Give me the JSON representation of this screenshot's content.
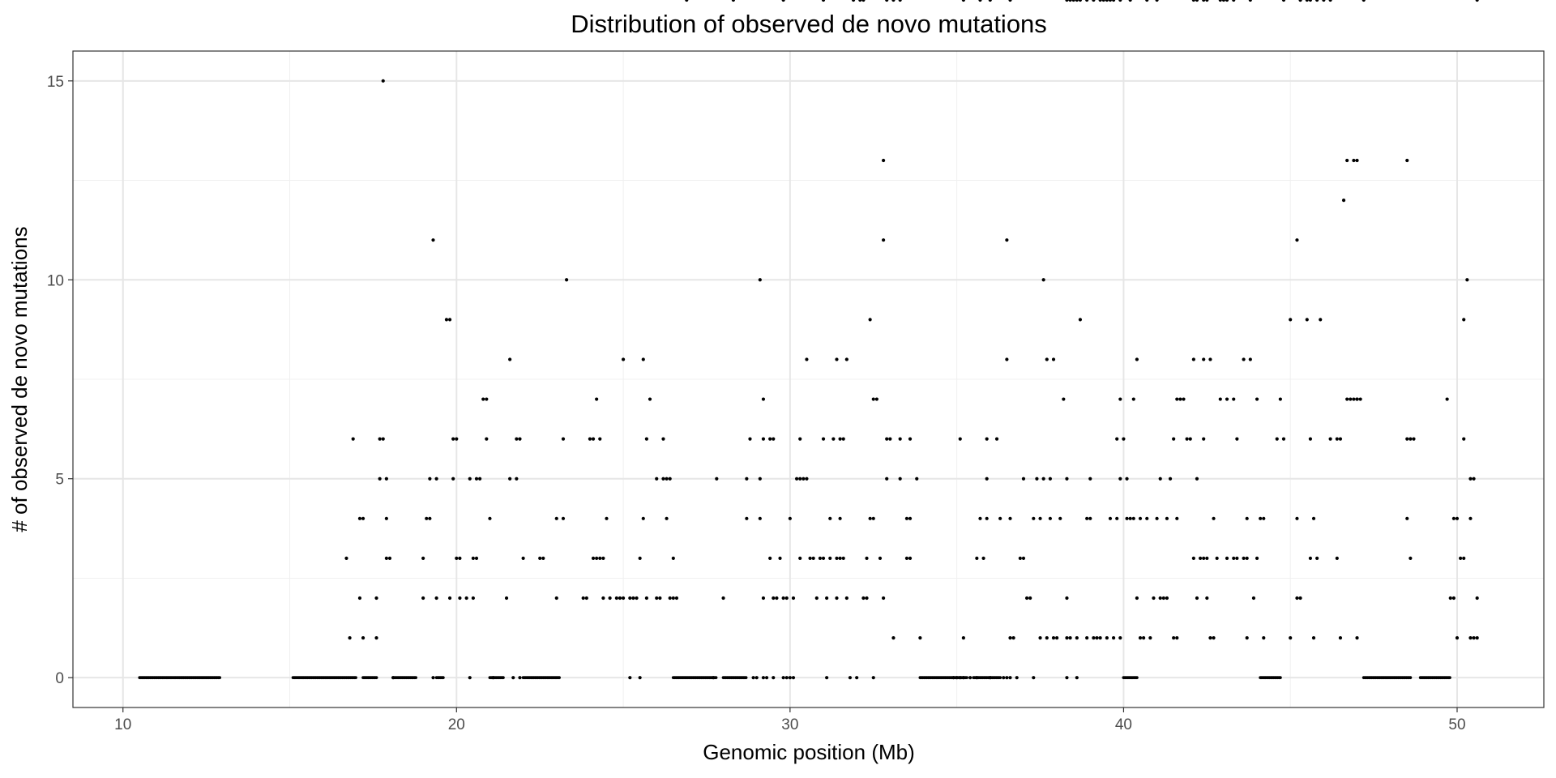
{
  "chart_data": {
    "type": "scatter",
    "title": "Distribution of observed de novo mutations",
    "xlabel": "Genomic position (Mb)",
    "ylabel": "# of observed de novo mutations",
    "xlim": [
      8.5,
      52.6
    ],
    "ylim": [
      -0.75,
      15.75
    ],
    "xticks": [
      10,
      20,
      30,
      40,
      50
    ],
    "yticks": [
      0,
      5,
      10,
      15
    ],
    "x_tick_labels": [
      "10",
      "20",
      "30",
      "40",
      "50"
    ],
    "y_tick_labels": [
      "0",
      "5",
      "10",
      "15"
    ],
    "grid": true,
    "legend": "none",
    "point_color": "#000000",
    "zero_runs": [
      [
        10.5,
        12.9
      ],
      [
        15.1,
        17.0
      ],
      [
        17.2,
        17.6
      ],
      [
        18.1,
        18.8
      ],
      [
        19.4,
        19.6
      ],
      [
        21.0,
        21.4
      ],
      [
        22.0,
        23.1
      ],
      [
        26.5,
        27.8
      ],
      [
        28.0,
        28.7
      ],
      [
        33.9,
        35.3
      ],
      [
        35.5,
        36.3
      ],
      [
        40.0,
        40.4
      ],
      [
        44.1,
        44.7
      ],
      [
        47.2,
        48.6
      ],
      [
        48.9,
        49.8
      ]
    ],
    "x": [
      17.8,
      32.8,
      46.7,
      46.9,
      47.0,
      48.5,
      46.6,
      19.3,
      32.8,
      36.5,
      45.2,
      23.3,
      29.1,
      37.6,
      50.3,
      19.8,
      32.4,
      38.7,
      45.0,
      45.5,
      45.9,
      50.2,
      19.7,
      25.0,
      25.6,
      21.6,
      30.5,
      31.4,
      31.7,
      36.5,
      37.7,
      37.9,
      40.4,
      42.1,
      42.4,
      42.6,
      43.6,
      43.8,
      47.0,
      49.7,
      20.8,
      20.9,
      24.2,
      25.8,
      29.2,
      32.5,
      32.6,
      38.2,
      39.9,
      40.3,
      41.6,
      41.7,
      41.8,
      42.9,
      43.1,
      43.3,
      44.0,
      44.7,
      46.7,
      46.8,
      46.9,
      47.0,
      47.1,
      48.5,
      50.2,
      16.9,
      17.7,
      17.8,
      19.9,
      20.0,
      20.9,
      21.8,
      21.9,
      23.2,
      24.0,
      24.1,
      24.3,
      25.7,
      26.2,
      28.8,
      29.2,
      29.4,
      29.5,
      30.3,
      31.0,
      31.3,
      31.5,
      31.6,
      32.9,
      33.0,
      33.3,
      33.6,
      35.1,
      35.9,
      36.2,
      39.8,
      40.0,
      41.5,
      41.9,
      42.0,
      42.4,
      43.4,
      44.6,
      44.8,
      45.6,
      46.2,
      46.4,
      46.5,
      48.6,
      48.7,
      50.4,
      50.5,
      17.7,
      17.9,
      19.2,
      19.4,
      19.9,
      20.4,
      20.6,
      20.7,
      21.6,
      21.8,
      26.0,
      26.2,
      26.3,
      26.4,
      27.8,
      28.7,
      29.1,
      30.2,
      30.3,
      30.4,
      30.5,
      32.9,
      33.3,
      33.8,
      35.9,
      37.0,
      37.4,
      37.6,
      37.8,
      38.3,
      39.0,
      39.9,
      40.1,
      41.1,
      41.4,
      42.2,
      42.7,
      43.7,
      44.1,
      44.2,
      45.2,
      45.7,
      48.5,
      49.9,
      50.0,
      50.4,
      17.1,
      17.2,
      17.9,
      19.1,
      19.2,
      21.0,
      23.0,
      23.2,
      24.5,
      25.6,
      26.3,
      28.7,
      29.1,
      30.0,
      31.2,
      31.5,
      32.4,
      32.5,
      33.5,
      33.6,
      35.7,
      35.9,
      36.3,
      36.6,
      37.3,
      37.5,
      37.8,
      38.1,
      38.9,
      39.0,
      39.6,
      39.8,
      40.1,
      40.2,
      40.3,
      40.5,
      40.7,
      41.0,
      41.3,
      41.6,
      42.1,
      42.3,
      42.4,
      42.5,
      42.8,
      43.1,
      43.3,
      43.4,
      43.6,
      43.7,
      44.0,
      45.6,
      45.8,
      46.4,
      48.6,
      50.1,
      50.2,
      16.7,
      17.9,
      18.0,
      19.0,
      20.0,
      20.1,
      20.5,
      20.6,
      22.0,
      22.5,
      22.6,
      24.1,
      24.2,
      24.3,
      24.4,
      25.5,
      26.5,
      29.4,
      29.7,
      30.3,
      30.6,
      30.7,
      30.9,
      31.0,
      31.2,
      31.4,
      31.5,
      31.6,
      32.3,
      32.7,
      33.5,
      33.6,
      35.6,
      35.8,
      36.9,
      37.0,
      37.1,
      37.2,
      38.3,
      40.4,
      40.9,
      41.1,
      41.2,
      41.3,
      42.2,
      42.5,
      43.9,
      45.2,
      45.3,
      49.8,
      49.9,
      50.6,
      17.1,
      17.6,
      19.0,
      19.4,
      19.8,
      20.1,
      20.3,
      20.5,
      21.5,
      23.0,
      23.8,
      23.9,
      24.4,
      24.6,
      24.8,
      24.9,
      25.0,
      25.2,
      25.3,
      25.4,
      25.7,
      26.0,
      26.1,
      26.4,
      26.5,
      26.6,
      28.0,
      29.2,
      29.5,
      29.6,
      29.8,
      29.9,
      30.1,
      30.8,
      31.1,
      31.4,
      31.7,
      32.2,
      32.3,
      32.8,
      33.1,
      33.9,
      35.2,
      36.6,
      36.7,
      37.5,
      37.7,
      37.9,
      38.0,
      38.3,
      38.4,
      38.6,
      38.9,
      39.1,
      39.2,
      39.3,
      39.5,
      39.7,
      39.9,
      40.5,
      40.6,
      40.8,
      41.5,
      41.6,
      42.6,
      42.7,
      43.7,
      44.2,
      45.0,
      45.7,
      46.5,
      47.0,
      50.0,
      50.4,
      50.5,
      50.6,
      16.8,
      17.2,
      17.6,
      18.1,
      19.3,
      20.4,
      21.1,
      21.7,
      21.9,
      25.2,
      25.5,
      27.7,
      28.9,
      29.0,
      29.2,
      29.3,
      29.5,
      29.8,
      29.9,
      30.0,
      30.1,
      31.1,
      31.8,
      32.0,
      32.5,
      34.9,
      35.0,
      35.1,
      35.2,
      35.4,
      35.6,
      36.0,
      36.4,
      36.5,
      36.6,
      36.8,
      37.3,
      38.3,
      38.6,
      39.1,
      39.3,
      39.4,
      39.5,
      39.7,
      39.9,
      40.2,
      42.9,
      43.0,
      45.3,
      45.5,
      47.2,
      50.6,
      26.9,
      28.3,
      29.8,
      31.0,
      31.9,
      32.1,
      32.2,
      32.9,
      33.1,
      33.3,
      35.2,
      35.7,
      36.0,
      36.6,
      38.3,
      38.4,
      38.5,
      38.6,
      38.7,
      38.9,
      39.6,
      40.7,
      41.0,
      42.1,
      42.2,
      42.4,
      42.5,
      43.1,
      43.3,
      43.8,
      44.8,
      45.3,
      45.6,
      45.8,
      46.0,
      46.2
    ]
  }
}
